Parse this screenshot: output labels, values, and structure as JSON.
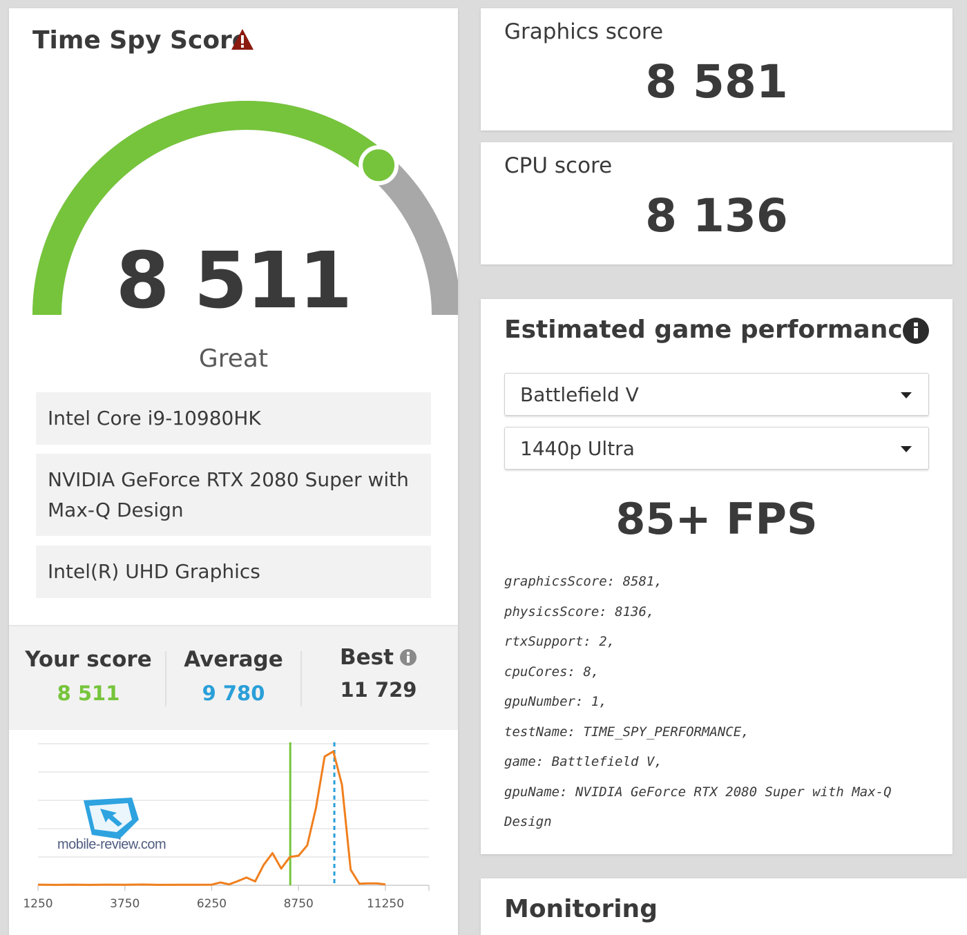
{
  "score_card": {
    "title": "Time Spy Score",
    "score": "8 511",
    "score_fraction": 0.73,
    "rating": "Great",
    "hardware": [
      "Intel Core i9-10980HK",
      "NVIDIA GeForce RTX 2080 Super with Max-Q Design",
      "Intel(R) UHD Graphics"
    ],
    "stats": {
      "your_score_label": "Your score",
      "your_score_value": "8 511",
      "average_label": "Average",
      "average_value": "9 780",
      "best_label": "Best",
      "best_value": "11 729"
    },
    "watermark": "mobile-review.com",
    "colors": {
      "gauge_green": "#76c43b",
      "gauge_gray": "#a8a8a8",
      "warning_red": "#8b1a0f",
      "average_blue": "#2a9fd8",
      "line_orange": "#f07f1d"
    }
  },
  "graphics": {
    "label": "Graphics score",
    "value": "8 581"
  },
  "cpu": {
    "label": "CPU score",
    "value": "8 136"
  },
  "game_performance": {
    "title": "Estimated game performance",
    "game_select": "Battlefield V",
    "quality_select": "1440p Ultra",
    "fps": "85+ FPS",
    "details": [
      "graphicsScore: 8581,",
      "physicsScore: 8136,",
      "rtxSupport: 2,",
      "cpuCores: 8,",
      "gpuNumber: 1,",
      "testName: TIME_SPY_PERFORMANCE,",
      "game: Battlefield V,",
      "gpuName: NVIDIA GeForce RTX 2080 Super with Max-Q Design"
    ]
  },
  "monitoring": {
    "title": "Monitoring"
  },
  "chart_data": {
    "type": "line",
    "x": [
      1250,
      1750,
      2250,
      2750,
      3250,
      3750,
      4250,
      4750,
      5250,
      5750,
      6250,
      6500,
      6750,
      7000,
      7250,
      7500,
      7750,
      8000,
      8250,
      8500,
      8750,
      9000,
      9250,
      9500,
      9750,
      10000,
      10250,
      10500,
      10750,
      11000,
      11250
    ],
    "values": [
      0.5,
      0.3,
      0.5,
      0.3,
      0.5,
      0.4,
      0.6,
      0.3,
      0.4,
      0.4,
      0.5,
      2.2,
      0.7,
      3.2,
      6.0,
      3.0,
      16.0,
      25.0,
      13.0,
      22.0,
      23.0,
      31.0,
      60.0,
      100.0,
      104.0,
      78.0,
      12.0,
      1.2,
      1.5,
      1.5,
      0.7
    ],
    "ylim": [
      0,
      110
    ],
    "grid": true,
    "markers": [
      {
        "name": "Your score",
        "x": 8511,
        "color": "#76c43b",
        "style": "solid"
      },
      {
        "name": "Average",
        "x": 9780,
        "color": "#2a9fd8",
        "style": "dashed"
      }
    ],
    "xticks": [
      1250,
      3750,
      6250,
      8750,
      11250
    ],
    "xtick_labels": [
      "1250",
      "3750",
      "6250",
      "8750",
      "11250"
    ]
  }
}
